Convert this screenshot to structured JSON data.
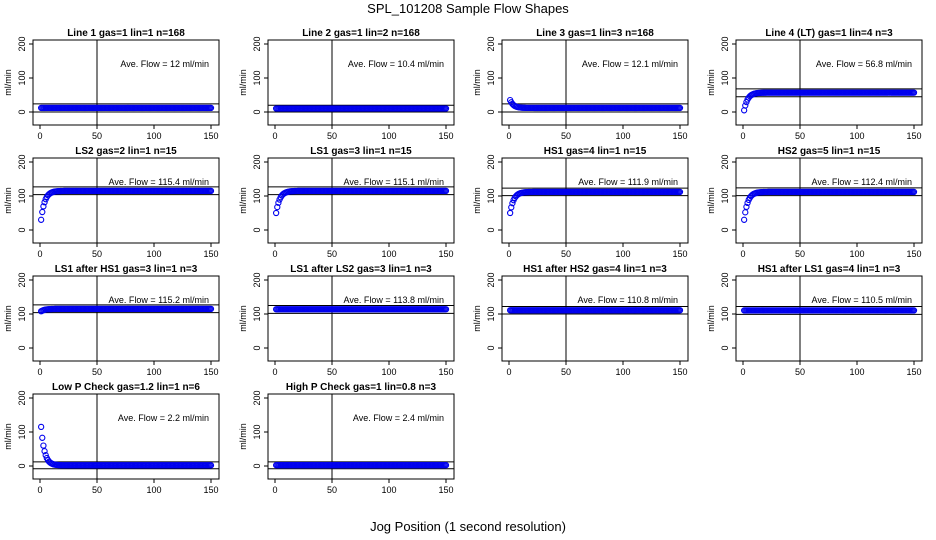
{
  "figure": {
    "title": "SPL_101208  Sample Flow Shapes",
    "xlabel": "Jog Position (1 second resolution)"
  },
  "colors": {
    "points": "#0000ee",
    "axes": "#000000"
  },
  "chart_data": [
    {
      "type": "scatter",
      "title": "Line 1 gas=1 lin=1 n=168",
      "annotation": "Ave. Flow =  12  ml/min",
      "ylabel": "ml/min",
      "xlim": [
        0,
        150
      ],
      "ylim": [
        0,
        200
      ],
      "xticks": [
        0,
        50,
        100,
        150
      ],
      "yticks": [
        0,
        100,
        200
      ],
      "vline": 50,
      "hlines": [
        24,
        0
      ],
      "series": [
        {
          "shape": "flat",
          "start": 12,
          "end": 12,
          "x_end": 150
        }
      ]
    },
    {
      "type": "scatter",
      "title": "Line 2 gas=1 lin=2 n=168",
      "annotation": "Ave. Flow =  10.4  ml/min",
      "ylabel": "ml/min",
      "xlim": [
        0,
        150
      ],
      "ylim": [
        0,
        200
      ],
      "xticks": [
        0,
        50,
        100,
        150
      ],
      "yticks": [
        0,
        100,
        200
      ],
      "vline": 50,
      "hlines": [
        20,
        0
      ],
      "series": [
        {
          "shape": "flat",
          "start": 10.4,
          "end": 10.4,
          "x_end": 150
        }
      ]
    },
    {
      "type": "scatter",
      "title": "Line 3 gas=1 lin=3 n=168",
      "annotation": "Ave. Flow =  12.1  ml/min",
      "ylabel": "ml/min",
      "xlim": [
        0,
        150
      ],
      "ylim": [
        0,
        200
      ],
      "xticks": [
        0,
        50,
        100,
        150
      ],
      "yticks": [
        0,
        100,
        200
      ],
      "vline": 50,
      "hlines": [
        24,
        0
      ],
      "series": [
        {
          "shape": "decay",
          "start": 35,
          "end": 12,
          "x_end": 150
        }
      ]
    },
    {
      "type": "scatter",
      "title": "Line 4 (LT) gas=1 lin=4 n=3",
      "annotation": "Ave. Flow =  56.8  ml/min",
      "ylabel": "ml/min",
      "xlim": [
        0,
        150
      ],
      "ylim": [
        0,
        200
      ],
      "xticks": [
        0,
        50,
        100,
        150
      ],
      "yticks": [
        0,
        100,
        200
      ],
      "vline": 50,
      "hlines": [
        68,
        45
      ],
      "series": [
        {
          "shape": "rise",
          "start": 5,
          "end": 57,
          "x_end": 150
        }
      ]
    },
    {
      "type": "scatter",
      "title": "LS2 gas=2 lin=1 n=15",
      "annotation": "Ave. Flow =  115.4  ml/min",
      "ylabel": "ml/min",
      "xlim": [
        0,
        150
      ],
      "ylim": [
        0,
        200
      ],
      "xticks": [
        0,
        50,
        100,
        150
      ],
      "yticks": [
        0,
        100,
        200
      ],
      "vline": 50,
      "hlines": [
        127,
        104
      ],
      "series": [
        {
          "shape": "rise",
          "start": 30,
          "end": 115,
          "x_end": 150
        }
      ]
    },
    {
      "type": "scatter",
      "title": "LS1 gas=3 lin=1 n=15",
      "annotation": "Ave. Flow =  115.1  ml/min",
      "ylabel": "ml/min",
      "xlim": [
        0,
        150
      ],
      "ylim": [
        0,
        200
      ],
      "xticks": [
        0,
        50,
        100,
        150
      ],
      "yticks": [
        0,
        100,
        200
      ],
      "vline": 50,
      "hlines": [
        127,
        104
      ],
      "series": [
        {
          "shape": "rise",
          "start": 50,
          "end": 115,
          "x_end": 150
        }
      ]
    },
    {
      "type": "scatter",
      "title": "HS1 gas=4 lin=1 n=15",
      "annotation": "Ave. Flow =  111.9  ml/min",
      "ylabel": "ml/min",
      "xlim": [
        0,
        150
      ],
      "ylim": [
        0,
        200
      ],
      "xticks": [
        0,
        50,
        100,
        150
      ],
      "yticks": [
        0,
        100,
        200
      ],
      "vline": 50,
      "hlines": [
        123,
        101
      ],
      "series": [
        {
          "shape": "rise",
          "start": 50,
          "end": 112,
          "x_end": 150
        }
      ]
    },
    {
      "type": "scatter",
      "title": "HS2 gas=5 lin=1 n=15",
      "annotation": "Ave. Flow =  112.4  ml/min",
      "ylabel": "ml/min",
      "xlim": [
        0,
        150
      ],
      "ylim": [
        0,
        200
      ],
      "xticks": [
        0,
        50,
        100,
        150
      ],
      "yticks": [
        0,
        100,
        200
      ],
      "vline": 50,
      "hlines": [
        124,
        101
      ],
      "series": [
        {
          "shape": "rise",
          "start": 30,
          "end": 112,
          "x_end": 150
        }
      ]
    },
    {
      "type": "scatter",
      "title": "LS1 after HS1 gas=3 lin=1 n=3",
      "annotation": "Ave. Flow =  115.2  ml/min",
      "ylabel": "ml/min",
      "xlim": [
        0,
        150
      ],
      "ylim": [
        0,
        200
      ],
      "xticks": [
        0,
        50,
        100,
        150
      ],
      "yticks": [
        0,
        100,
        200
      ],
      "vline": 50,
      "hlines": [
        127,
        104
      ],
      "series": [
        {
          "shape": "rise",
          "start": 108,
          "end": 115,
          "x_end": 150
        }
      ]
    },
    {
      "type": "scatter",
      "title": "LS1 after LS2 gas=3 lin=1 n=3",
      "annotation": "Ave. Flow =  113.8  ml/min",
      "ylabel": "ml/min",
      "xlim": [
        0,
        150
      ],
      "ylim": [
        0,
        200
      ],
      "xticks": [
        0,
        50,
        100,
        150
      ],
      "yticks": [
        0,
        100,
        200
      ],
      "vline": 50,
      "hlines": [
        125,
        102
      ],
      "series": [
        {
          "shape": "flat",
          "start": 114,
          "end": 114,
          "x_end": 150
        }
      ]
    },
    {
      "type": "scatter",
      "title": "HS1 after HS2 gas=4 lin=1 n=3",
      "annotation": "Ave. Flow =  110.8  ml/min",
      "ylabel": "ml/min",
      "xlim": [
        0,
        150
      ],
      "ylim": [
        0,
        200
      ],
      "xticks": [
        0,
        50,
        100,
        150
      ],
      "yticks": [
        0,
        100,
        200
      ],
      "vline": 50,
      "hlines": [
        122,
        100
      ],
      "series": [
        {
          "shape": "flat",
          "start": 111,
          "end": 111,
          "x_end": 150
        }
      ]
    },
    {
      "type": "scatter",
      "title": "HS1 after LS1 gas=4 lin=1 n=3",
      "annotation": "Ave. Flow =  110.5  ml/min",
      "ylabel": "ml/min",
      "xlim": [
        0,
        150
      ],
      "ylim": [
        0,
        200
      ],
      "xticks": [
        0,
        50,
        100,
        150
      ],
      "yticks": [
        0,
        100,
        200
      ],
      "vline": 50,
      "hlines": [
        122,
        99
      ],
      "series": [
        {
          "shape": "flat",
          "start": 110.5,
          "end": 110.5,
          "x_end": 150
        }
      ]
    },
    {
      "type": "scatter",
      "title": "Low P Check gas=1.2 lin=1 n=6",
      "annotation": "Ave. Flow =  2.2  ml/min",
      "ylabel": "ml/min",
      "xlim": [
        0,
        150
      ],
      "ylim": [
        0,
        200
      ],
      "xticks": [
        0,
        50,
        100,
        150
      ],
      "yticks": [
        0,
        100,
        200
      ],
      "vline": 50,
      "hlines": [
        12,
        -8
      ],
      "series": [
        {
          "shape": "decay",
          "start": 115,
          "end": 2,
          "x_end": 150
        }
      ]
    },
    {
      "type": "scatter",
      "title": "High P Check gas=1 lin=0.8 n=3",
      "annotation": "Ave. Flow =  2.4  ml/min",
      "ylabel": "ml/min",
      "xlim": [
        0,
        150
      ],
      "ylim": [
        0,
        200
      ],
      "xticks": [
        0,
        50,
        100,
        150
      ],
      "yticks": [
        0,
        100,
        200
      ],
      "vline": 50,
      "hlines": [
        12,
        -8
      ],
      "series": [
        {
          "shape": "flat",
          "start": 2.4,
          "end": 2.4,
          "x_end": 150
        }
      ]
    }
  ]
}
